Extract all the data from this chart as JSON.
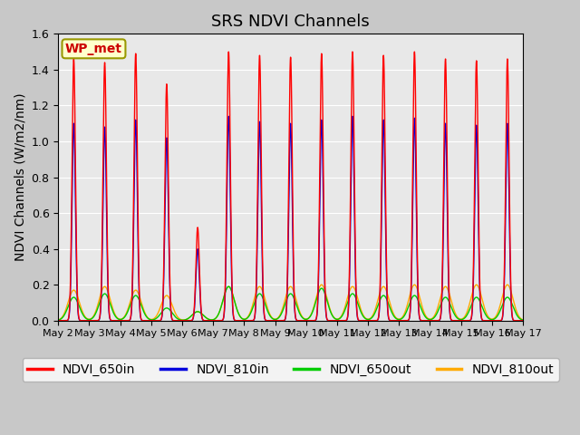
{
  "title": "SRS NDVI Channels",
  "ylabel": "NDVI Channels (W/m2/nm)",
  "annotation": "WP_met",
  "ylim": [
    0.0,
    1.6
  ],
  "fig_bg": "#c8c8c8",
  "axes_bg": "#e8e8e8",
  "grid_color": "white",
  "colors": {
    "NDVI_650in": "#ff0000",
    "NDVI_810in": "#0000dd",
    "NDVI_650out": "#00cc00",
    "NDVI_810out": "#ffaa00"
  },
  "tick_labels": [
    "May 2",
    "May 3",
    "May 4",
    "May 5",
    "May 6",
    "May 7",
    "May 8",
    "May 9",
    "May 10",
    "May 11",
    "May 12",
    "May 13",
    "May 14",
    "May 15",
    "May 16",
    "May 17"
  ],
  "num_days": 15,
  "peaks": {
    "NDVI_650in": [
      1.46,
      1.44,
      1.49,
      1.32,
      0.52,
      1.5,
      1.48,
      1.47,
      1.49,
      1.5,
      1.48,
      1.5,
      1.46,
      1.45,
      1.46
    ],
    "NDVI_810in": [
      1.1,
      1.08,
      1.12,
      1.02,
      0.4,
      1.14,
      1.11,
      1.1,
      1.12,
      1.14,
      1.12,
      1.13,
      1.1,
      1.09,
      1.1
    ],
    "NDVI_650out": [
      0.13,
      0.15,
      0.14,
      0.07,
      0.05,
      0.19,
      0.15,
      0.15,
      0.18,
      0.15,
      0.14,
      0.14,
      0.13,
      0.13,
      0.13
    ],
    "NDVI_810out": [
      0.17,
      0.19,
      0.17,
      0.14,
      0.05,
      0.19,
      0.19,
      0.19,
      0.2,
      0.19,
      0.19,
      0.2,
      0.19,
      0.2,
      0.2
    ]
  },
  "sigma_in": 0.055,
  "sigma_out": 0.18,
  "pts_per_day": 300,
  "title_fontsize": 13,
  "label_fontsize": 10,
  "tick_fontsize": 8,
  "legend_fontsize": 10,
  "linewidth": 1.0
}
